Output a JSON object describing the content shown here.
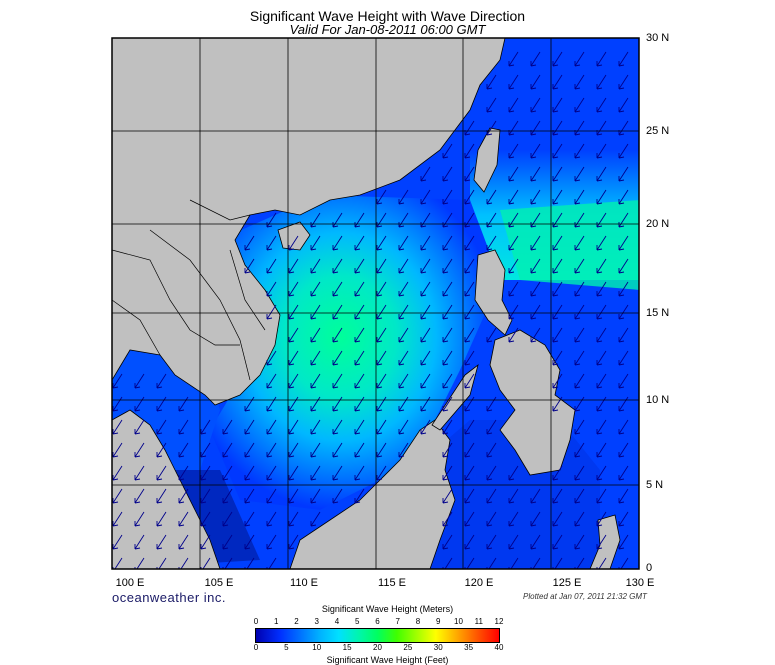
{
  "title": "Significant Wave Height with Wave Direction",
  "subtitle": "Valid For Jan-08-2011 06:00 GMT",
  "x_ticks": [
    "100 E",
    "105 E",
    "110 E",
    "115 E",
    "120 E",
    "125 E",
    "130 E"
  ],
  "y_ticks": [
    "30 N",
    "25 N",
    "20 N",
    "15 N",
    "10 N",
    "5 N",
    "0"
  ],
  "brand": "oceanweather inc.",
  "plotted": "Plotted at Jan 07, 2011 21:32 GMT",
  "colorbar": {
    "title_meters": "Significant Wave Height (Meters)",
    "title_feet": "Significant Wave Height (Feet)",
    "meter_labels": [
      "0",
      "1",
      "2",
      "3",
      "4",
      "5",
      "6",
      "7",
      "8",
      "9",
      "10",
      "11",
      "12"
    ],
    "feet_labels": [
      "0",
      "5",
      "10",
      "15",
      "20",
      "25",
      "30",
      "35",
      "40"
    ],
    "range_m": [
      0,
      12
    ],
    "range_ft": [
      0,
      40
    ]
  },
  "colors": {
    "land": "#c0c0c0",
    "ocean_low": "#0030ff",
    "ocean_mid": "#00d8ff",
    "ocean_high": "#00ff80",
    "arrows": "#00008a"
  },
  "map_extent": {
    "lon": [
      100,
      130
    ],
    "lat": [
      0,
      30
    ]
  },
  "wave_direction": "from northeast (arrows point southwest)"
}
